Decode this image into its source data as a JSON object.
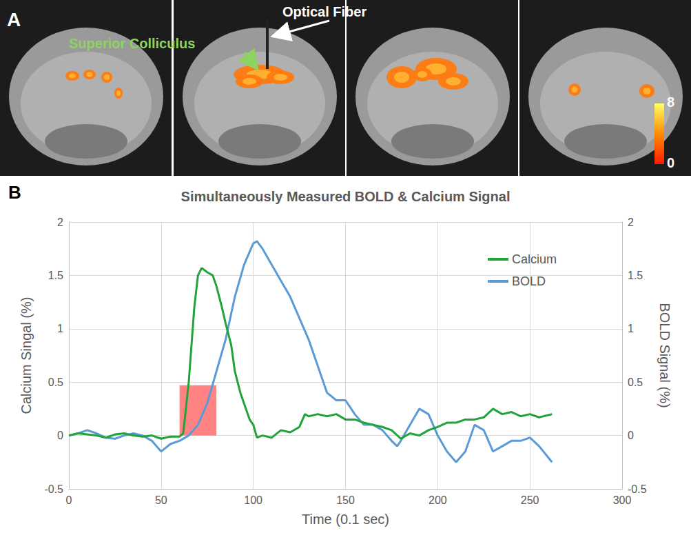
{
  "panel_a": {
    "label": "A",
    "annotations": [
      "Superior Colliculus",
      "Optical Fiber"
    ],
    "colorbar": {
      "range": [
        0,
        8
      ],
      "ticks": [
        0,
        8
      ]
    }
  },
  "chart_data": {
    "type": "line",
    "panel": "B",
    "title": "Simultaneously Measured BOLD & Calcium Signal",
    "x_label": "Time (0.1 sec)",
    "y_label": "Calcium Singal (%)",
    "y2_label": "BOLD Signal (%)",
    "xlim": [
      0,
      300
    ],
    "xticks": [
      0,
      50,
      100,
      150,
      200,
      250,
      300
    ],
    "ylim": [
      -0.5,
      2
    ],
    "yticks": [
      -0.5,
      0,
      0.5,
      1,
      1.5,
      2
    ],
    "y2lim": [
      -0.5,
      2
    ],
    "y2ticks": [
      -0.5,
      0,
      0.5,
      1,
      1.5,
      2
    ],
    "grid": true,
    "legend": "upper right",
    "shaded_region": {
      "x": [
        60,
        80
      ],
      "y": [
        0,
        0.47
      ],
      "color": "#ff5a5a"
    },
    "series": [
      {
        "name": "Calcium",
        "color": "#22a33a",
        "x": [
          0,
          5,
          10,
          15,
          20,
          25,
          30,
          35,
          40,
          45,
          50,
          55,
          60,
          62,
          65,
          68,
          70,
          72,
          75,
          78,
          80,
          83,
          85,
          88,
          90,
          93,
          95,
          98,
          100,
          102,
          105,
          110,
          115,
          120,
          125,
          128,
          130,
          135,
          140,
          145,
          150,
          155,
          160,
          165,
          170,
          175,
          180,
          185,
          190,
          195,
          200,
          205,
          210,
          215,
          220,
          225,
          230,
          235,
          240,
          245,
          250,
          255,
          262
        ],
        "values": [
          0,
          0.02,
          0.01,
          0,
          -0.02,
          0.01,
          0.02,
          0,
          -0.01,
          0,
          -0.03,
          -0.01,
          -0.01,
          0.02,
          0.5,
          1.2,
          1.5,
          1.57,
          1.53,
          1.5,
          1.4,
          1.2,
          1.05,
          0.85,
          0.6,
          0.4,
          0.3,
          0.15,
          0.1,
          -0.02,
          0,
          -0.02,
          0.05,
          0.03,
          0.08,
          0.2,
          0.18,
          0.2,
          0.18,
          0.2,
          0.15,
          0.15,
          0.12,
          0.1,
          0.08,
          0.05,
          -0.03,
          0.02,
          0,
          0.05,
          0.08,
          0.12,
          0.12,
          0.15,
          0.15,
          0.17,
          0.25,
          0.2,
          0.22,
          0.18,
          0.2,
          0.17,
          0.2
        ]
      },
      {
        "name": "BOLD",
        "color": "#5b9bd5",
        "axis": "y2",
        "x": [
          0,
          5,
          10,
          15,
          20,
          25,
          30,
          35,
          40,
          45,
          50,
          55,
          60,
          65,
          70,
          75,
          80,
          85,
          90,
          95,
          100,
          102,
          105,
          110,
          115,
          120,
          125,
          130,
          135,
          140,
          145,
          150,
          155,
          160,
          165,
          170,
          175,
          178,
          180,
          185,
          190,
          195,
          200,
          205,
          210,
          215,
          220,
          225,
          230,
          235,
          240,
          245,
          250,
          255,
          262
        ],
        "values": [
          0,
          0.02,
          0.05,
          0.02,
          -0.02,
          -0.03,
          0,
          0.02,
          0,
          -0.05,
          -0.15,
          -0.08,
          -0.05,
          0,
          0.1,
          0.3,
          0.6,
          0.9,
          1.3,
          1.6,
          1.8,
          1.82,
          1.75,
          1.6,
          1.45,
          1.3,
          1.1,
          0.9,
          0.65,
          0.4,
          0.33,
          0.33,
          0.2,
          0.1,
          0.1,
          0.05,
          -0.05,
          -0.1,
          -0.05,
          0.1,
          0.25,
          0.2,
          0,
          -0.15,
          -0.25,
          -0.15,
          0.1,
          0.05,
          -0.15,
          -0.1,
          -0.05,
          -0.05,
          -0.02,
          -0.1,
          -0.25
        ]
      }
    ]
  }
}
